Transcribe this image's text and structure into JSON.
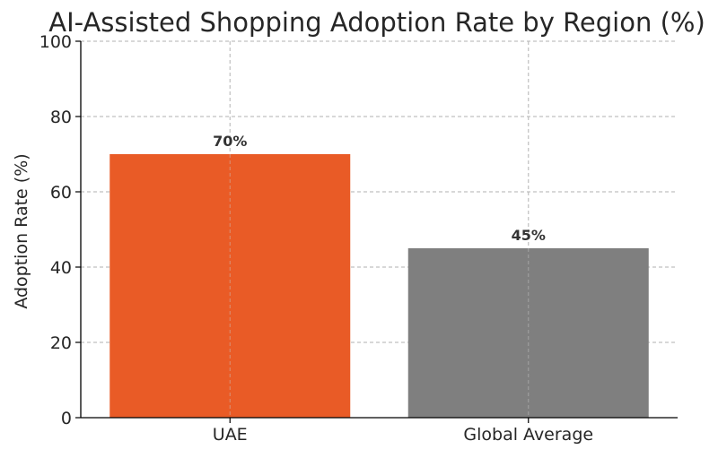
{
  "chart_data": {
    "type": "bar",
    "title": "AI-Assisted Shopping Adoption Rate by Region (%)",
    "xlabel": "",
    "ylabel": "Adoption Rate (%)",
    "categories": [
      "UAE",
      "Global Average"
    ],
    "values": [
      70,
      45
    ],
    "data_labels": [
      "70%",
      "45%"
    ],
    "ylim": [
      0,
      100
    ],
    "yticks": [
      0,
      20,
      40,
      60,
      80,
      100
    ],
    "grid": true,
    "colors": [
      "#e95b26",
      "#7f7f7f"
    ]
  }
}
